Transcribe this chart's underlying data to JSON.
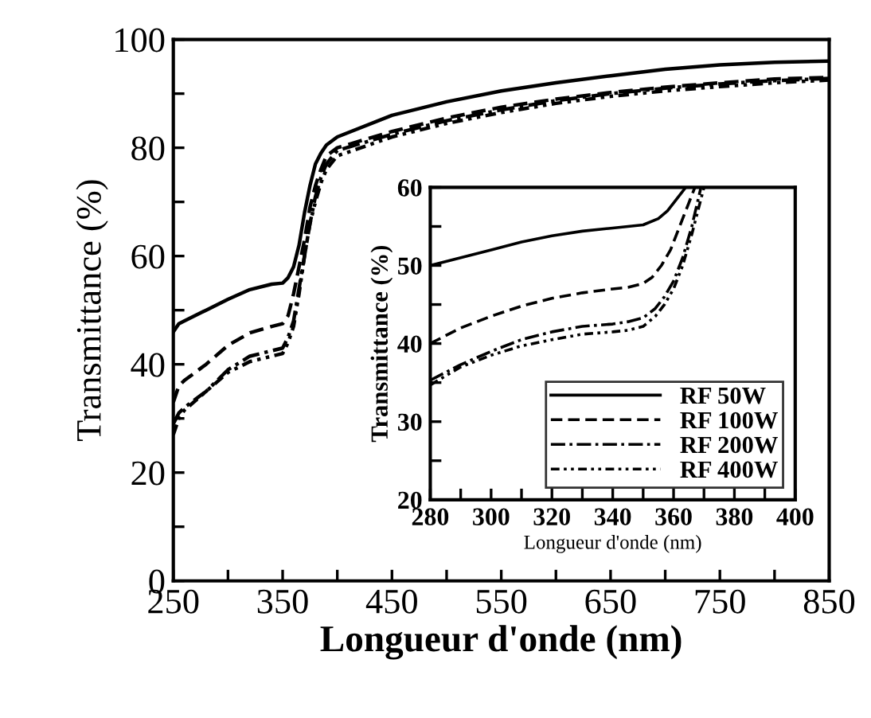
{
  "chart_data": [
    {
      "type": "line",
      "xlabel": "Longueur d'onde (nm)",
      "ylabel": "Transmittance (%)",
      "xlim": [
        250,
        850
      ],
      "ylim": [
        0,
        100
      ],
      "xticks": [
        250,
        {
          "value": 300,
          "label": null
        },
        350,
        {
          "value": 400,
          "label": null
        },
        450,
        {
          "value": 500,
          "label": null
        },
        550,
        {
          "value": 600,
          "label": null
        },
        650,
        {
          "value": 700,
          "label": null
        },
        750,
        {
          "value": 800,
          "label": null
        },
        850
      ],
      "yticks": [
        0,
        {
          "value": 10,
          "label": null
        },
        20,
        {
          "value": 30,
          "label": null
        },
        40,
        {
          "value": 50,
          "label": null
        },
        60,
        {
          "value": 70,
          "label": null
        },
        80,
        {
          "value": 90,
          "label": null
        },
        100
      ],
      "grid": false,
      "legend": false,
      "series": [
        {
          "color": "#000000",
          "line_style": "solid",
          "x": [
            250,
            255,
            260,
            280,
            300,
            320,
            340,
            350,
            355,
            360,
            365,
            370,
            375,
            380,
            385,
            390,
            400,
            450,
            500,
            550,
            600,
            650,
            700,
            750,
            800,
            850
          ],
          "values": [
            46,
            47.5,
            48,
            50,
            52,
            53.8,
            54.8,
            55,
            56,
            58,
            62,
            68,
            73,
            77,
            79,
            80.5,
            82,
            86,
            88.5,
            90.5,
            92,
            93.3,
            94.5,
            95.3,
            95.8,
            96
          ]
        },
        {
          "color": "#000000",
          "line_style": "dashed",
          "x": [
            250,
            255,
            260,
            280,
            300,
            320,
            340,
            350,
            355,
            360,
            365,
            370,
            375,
            380,
            385,
            390,
            400,
            450,
            500,
            550,
            600,
            650,
            700,
            750,
            800,
            850
          ],
          "values": [
            33,
            36,
            37,
            40,
            43.5,
            45.8,
            47,
            47.5,
            49,
            53,
            58,
            63,
            69,
            73,
            76,
            78.5,
            80,
            83,
            85.5,
            87.5,
            89,
            90.2,
            91.2,
            92,
            92.7,
            93
          ]
        },
        {
          "color": "#000000",
          "line_style": "dotted",
          "x": [
            250,
            255,
            260,
            280,
            300,
            320,
            340,
            350,
            355,
            360,
            365,
            370,
            375,
            380,
            385,
            390,
            400,
            450,
            500,
            550,
            600,
            650,
            700,
            750,
            800,
            850
          ],
          "values": [
            29,
            31,
            32,
            35,
            39,
            41.5,
            42.5,
            43,
            45,
            48,
            54,
            60,
            66,
            71,
            74.5,
            77,
            79.5,
            82.5,
            85,
            87,
            88.7,
            90,
            91,
            91.8,
            92.4,
            92.8
          ]
        },
        {
          "color": "#000000",
          "line_style": "dashed",
          "x": [
            250,
            255,
            260,
            280,
            300,
            320,
            340,
            350,
            355,
            360,
            365,
            370,
            375,
            380,
            385,
            390,
            400,
            450,
            500,
            550,
            600,
            650,
            700,
            750,
            800,
            850
          ],
          "values": [
            27,
            30,
            31.5,
            35,
            38.5,
            40.5,
            41.5,
            42,
            44,
            47,
            53,
            60,
            66,
            70,
            73.5,
            76,
            78.5,
            82,
            84.5,
            86.5,
            88.2,
            89.5,
            90.5,
            91.3,
            92,
            92.5
          ]
        }
      ]
    },
    {
      "type": "line",
      "xlabel": "Longueur d'onde (nm)",
      "ylabel": "Transmittance (%)",
      "xlim": [
        280,
        400
      ],
      "ylim": [
        20,
        60
      ],
      "xticks": [
        280,
        {
          "value": 290,
          "label": null
        },
        300,
        {
          "value": 310,
          "label": null
        },
        320,
        {
          "value": 330,
          "label": null
        },
        340,
        {
          "value": 350,
          "label": null
        },
        360,
        {
          "value": 370,
          "label": null
        },
        380,
        {
          "value": 390,
          "label": null
        },
        400
      ],
      "yticks": [
        20,
        {
          "value": 25,
          "label": null
        },
        30,
        {
          "value": 35,
          "label": null
        },
        40,
        {
          "value": 45,
          "label": null
        },
        50,
        {
          "value": 55,
          "label": null
        },
        60
      ],
      "grid": false,
      "legend": "bottom right",
      "series": [
        {
          "name": "RF 50W",
          "color": "#000000",
          "line_style": "solid",
          "x": [
            280,
            290,
            300,
            310,
            320,
            330,
            340,
            345,
            350,
            355,
            358,
            361,
            364
          ],
          "values": [
            50,
            51,
            52,
            53,
            53.8,
            54.4,
            54.8,
            55,
            55.2,
            56,
            57,
            58.5,
            60
          ]
        },
        {
          "name": "RF 100W",
          "color": "#000000",
          "line_style": "dashed",
          "x": [
            280,
            290,
            300,
            310,
            320,
            330,
            340,
            345,
            350,
            353,
            356,
            359,
            362,
            365,
            367
          ],
          "values": [
            40,
            42,
            43.5,
            44.8,
            45.8,
            46.5,
            47,
            47.2,
            47.7,
            48.5,
            50,
            52,
            55,
            58,
            60
          ]
        },
        {
          "name": "RF 200W",
          "color": "#000000",
          "line_style": "dotted",
          "x": [
            280,
            290,
            300,
            310,
            320,
            330,
            340,
            345,
            350,
            354,
            357,
            360,
            363,
            366,
            369
          ],
          "values": [
            35.3,
            37.3,
            39,
            40.5,
            41.5,
            42.2,
            42.5,
            42.8,
            43.3,
            44.5,
            46,
            48,
            51,
            55,
            60
          ]
        },
        {
          "name": "RF 400W",
          "color": "#000000",
          "line_style": "dashed",
          "x": [
            280,
            290,
            300,
            310,
            320,
            330,
            340,
            345,
            350,
            354,
            357,
            360,
            363,
            366,
            370
          ],
          "values": [
            34.7,
            37,
            38.5,
            39.7,
            40.5,
            41.2,
            41.5,
            41.7,
            42.2,
            43.5,
            45,
            47,
            50,
            54,
            60
          ]
        }
      ]
    }
  ]
}
